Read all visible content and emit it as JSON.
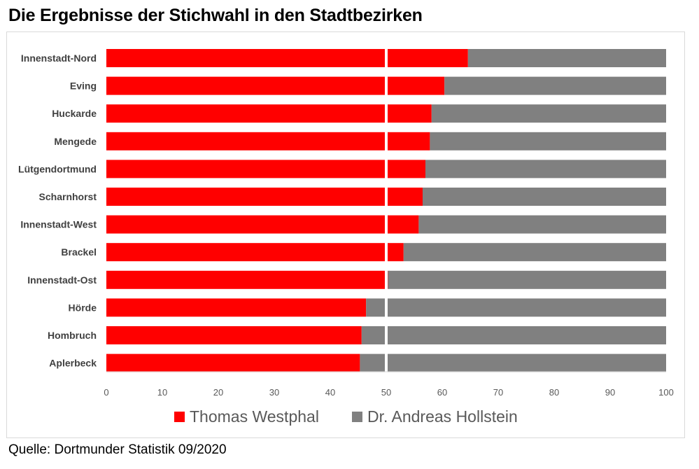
{
  "title": "Die Ergebnisse der Stichwahl in den Stadtbezirken",
  "source": "Quelle: Dortmunder Statistik 09/2020",
  "colors": {
    "westphal": "#ff0000",
    "hollstein": "#808080",
    "divider": "#ffffff"
  },
  "chart_data": {
    "type": "bar",
    "orientation": "horizontal",
    "stacked": true,
    "categories": [
      "Innenstadt-Nord",
      "Eving",
      "Huckarde",
      "Mengede",
      "Lütgendortmund",
      "Scharnhorst",
      "Innenstadt-West",
      "Brackel",
      "Innenstadt-Ost",
      "Hörde",
      "Hombruch",
      "Aplerbeck"
    ],
    "series": [
      {
        "name": "Thomas Westphal",
        "values": [
          64.6,
          60.4,
          58.1,
          57.8,
          57.0,
          56.5,
          55.8,
          53.1,
          50.3,
          46.4,
          45.6,
          45.3
        ]
      },
      {
        "name": "Dr. Andreas Hollstein",
        "values": [
          35.4,
          39.6,
          41.9,
          42.2,
          43.0,
          43.5,
          44.2,
          46.9,
          49.7,
          53.6,
          54.4,
          54.7
        ]
      }
    ],
    "xlim": [
      0,
      100
    ],
    "xticks": [
      "0",
      "10",
      "20",
      "30",
      "40",
      "50",
      "60",
      "70",
      "80",
      "90",
      "100"
    ],
    "reference_line": 50,
    "grid": false,
    "legend": "bottom"
  }
}
